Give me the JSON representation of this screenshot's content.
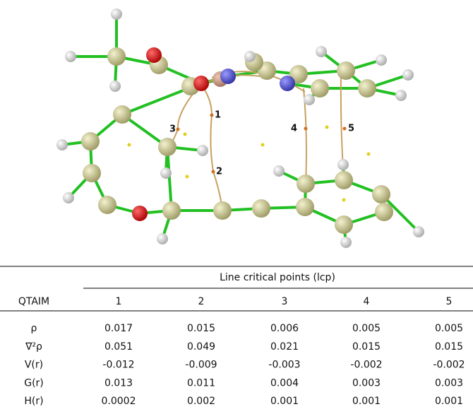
{
  "molecule": {
    "labels": [
      "1",
      "2",
      "3",
      "4",
      "5"
    ]
  },
  "table": {
    "caption": "Line critical points (lcp)",
    "header": [
      "QTAIM",
      "1",
      "2",
      "3",
      "4",
      "5"
    ],
    "rows": [
      [
        "ρ",
        "0.017",
        "0.015",
        "0.006",
        "0.005",
        "0.005"
      ],
      [
        "∇²ρ",
        "0.051",
        "0.049",
        "0.021",
        "0.015",
        "0.015"
      ],
      [
        "V(r)",
        "-0.012",
        "-0.009",
        "-0.003",
        "-0.002",
        "-0.002"
      ],
      [
        "G(r)",
        "0.013",
        "0.011",
        "0.004",
        "0.003",
        "0.003"
      ],
      [
        "H(r)",
        "0.0002",
        "0.002",
        "0.001",
        "0.001",
        "0.001"
      ]
    ]
  }
}
